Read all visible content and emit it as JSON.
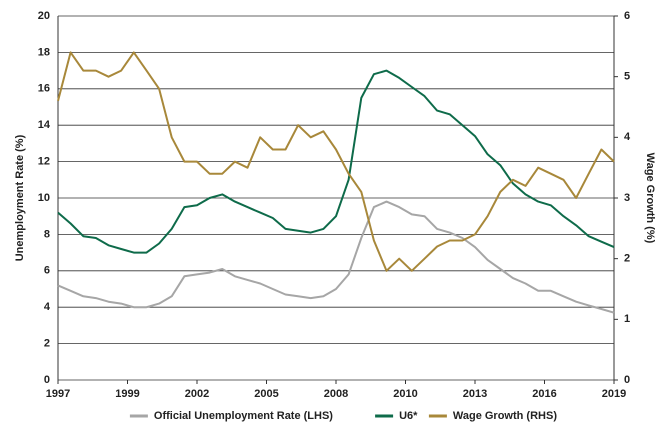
{
  "chart_data": {
    "type": "line",
    "y_label": "Unemployment Rate (%)",
    "y2_label": "Wage Growth (%)",
    "x": [
      1997,
      1997.5,
      1998,
      1998.5,
      1999,
      1999.5,
      2000,
      2000.5,
      2001,
      2001.5,
      2002,
      2002.5,
      2003,
      2003.5,
      2004,
      2004.5,
      2005,
      2005.5,
      2006,
      2006.5,
      2007,
      2007.5,
      2008,
      2008.5,
      2009,
      2009.5,
      2010,
      2010.5,
      2011,
      2011.5,
      2012,
      2012.5,
      2013,
      2013.5,
      2014,
      2014.5,
      2015,
      2015.5,
      2016,
      2016.5,
      2017,
      2017.5,
      2018,
      2018.5,
      2019
    ],
    "xlim": [
      1997,
      2019
    ],
    "xticks": [
      1997,
      {
        "value": 1999.75,
        "label": "1999"
      },
      {
        "value": 2002.5,
        "label": "2002"
      },
      {
        "value": 2005.25,
        "label": "2005"
      },
      2008,
      {
        "value": 2010.75,
        "label": "2010"
      },
      {
        "value": 2013.5,
        "label": "2013"
      },
      {
        "value": 2016.25,
        "label": "2016"
      },
      2019
    ],
    "ylim": [
      0,
      20
    ],
    "yticks": [
      0,
      2,
      4,
      6,
      8,
      10,
      12,
      14,
      16,
      18,
      20
    ],
    "y2lim": [
      0,
      6
    ],
    "y2ticks": [
      0,
      1,
      2,
      3,
      4,
      5,
      6
    ],
    "grid": true,
    "legend": "bottom",
    "series": [
      {
        "name": "Official Unemployment Rate (LHS)",
        "color": "#a6a6a6",
        "values": [
          5.2,
          4.9,
          4.6,
          4.5,
          4.3,
          4.2,
          4.0,
          4.0,
          4.2,
          4.6,
          5.7,
          5.8,
          5.9,
          6.1,
          5.7,
          5.5,
          5.3,
          5.0,
          4.7,
          4.6,
          4.5,
          4.6,
          5.0,
          5.8,
          7.8,
          9.5,
          9.8,
          9.5,
          9.1,
          9.0,
          8.3,
          8.1,
          7.8,
          7.3,
          6.6,
          6.1,
          5.6,
          5.3,
          4.9,
          4.9,
          4.6,
          4.3,
          4.1,
          3.9,
          3.7
        ]
      },
      {
        "name": "U6*",
        "color": "#0e6b4a",
        "values": [
          9.2,
          8.6,
          7.9,
          7.8,
          7.4,
          7.2,
          7.0,
          7.0,
          7.5,
          8.3,
          9.5,
          9.6,
          10.0,
          10.2,
          9.8,
          9.5,
          9.2,
          8.9,
          8.3,
          8.2,
          8.1,
          8.3,
          9.0,
          11.0,
          15.5,
          16.8,
          17.0,
          16.6,
          16.1,
          15.6,
          14.8,
          14.6,
          14.0,
          13.4,
          12.4,
          11.8,
          10.8,
          10.2,
          9.8,
          9.6,
          9.0,
          8.5,
          7.9,
          7.6,
          7.3
        ]
      },
      {
        "name": "Wage Growth (RHS)",
        "color": "#a8883a",
        "axis": "y2",
        "values": [
          4.6,
          5.4,
          5.1,
          5.1,
          5.0,
          5.1,
          5.4,
          5.1,
          4.8,
          4.0,
          3.6,
          3.6,
          3.4,
          3.4,
          3.6,
          3.5,
          4.0,
          3.8,
          3.8,
          4.2,
          4.0,
          4.1,
          3.8,
          3.4,
          3.1,
          2.3,
          1.8,
          2.0,
          1.8,
          2.0,
          2.2,
          2.3,
          2.3,
          2.4,
          2.7,
          3.1,
          3.3,
          3.2,
          3.5,
          3.4,
          3.3,
          3.0,
          3.4,
          3.8,
          3.6
        ]
      }
    ]
  }
}
